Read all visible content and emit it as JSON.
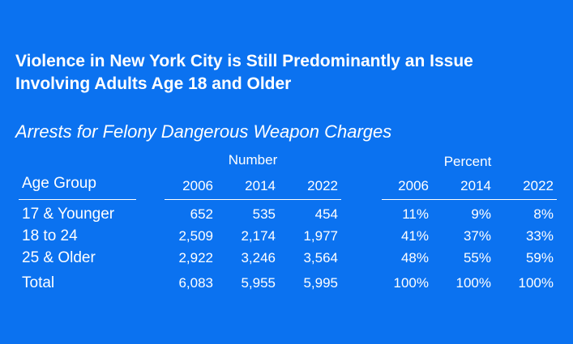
{
  "title_line1": "Violence in New York City is Still Predominantly an Issue",
  "title_line2": "Involving Adults Age 18 and Older",
  "subtitle": "Arrests for Felony Dangerous Weapon Charges",
  "chart_data": {
    "type": "table",
    "group_headers": {
      "number": "Number",
      "percent": "Percent"
    },
    "row_header": "Age Group",
    "columns": {
      "number": [
        "2006",
        "2014",
        "2022"
      ],
      "percent": [
        "2006",
        "2014",
        "2022"
      ]
    },
    "rows": [
      {
        "label": "17 & Younger",
        "number": [
          "652",
          "535",
          "454"
        ],
        "percent": [
          "11%",
          "9%",
          "8%"
        ]
      },
      {
        "label": "18 to 24",
        "number": [
          "2,509",
          "2,174",
          "1,977"
        ],
        "percent": [
          "41%",
          "37%",
          "33%"
        ]
      },
      {
        "label": "25 & Older",
        "number": [
          "2,922",
          "3,246",
          "3,564"
        ],
        "percent": [
          "48%",
          "55%",
          "59%"
        ]
      },
      {
        "label": "Total",
        "number": [
          "6,083",
          "5,955",
          "5,995"
        ],
        "percent": [
          "100%",
          "100%",
          "100%"
        ]
      }
    ]
  }
}
